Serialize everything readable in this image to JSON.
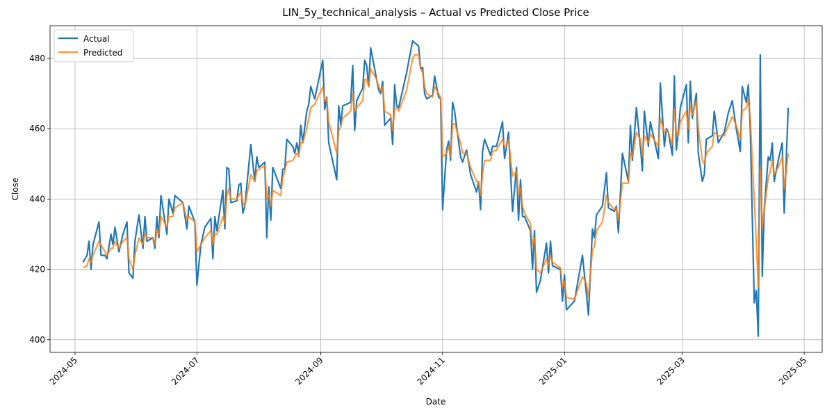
{
  "chart_data": {
    "type": "line",
    "title": "LIN_5y_technical_analysis – Actual vs Predicted Close Price",
    "x_label": "Date",
    "y_label": "Close",
    "x": [
      19848,
      19850,
      19851,
      19852,
      19853,
      19856,
      19857,
      19859,
      19860,
      19862,
      19863,
      19864,
      19866,
      19868,
      19870,
      19871,
      19873,
      19874,
      19876,
      19878,
      19879,
      19880,
      19883,
      19884,
      19885,
      19886,
      19887,
      19890,
      19891,
      19893,
      19894,
      19898,
      19900,
      19901,
      19904,
      19905,
      19907,
      19909,
      19912,
      19913,
      19914,
      19915,
      19918,
      19919,
      19920,
      19921,
      19922,
      19925,
      19926,
      19927,
      19928,
      19929,
      19932,
      19934,
      19935,
      19936,
      19939,
      19940,
      19941,
      19942,
      19943,
      19947,
      19948,
      19949,
      19950,
      19953,
      19954,
      19955,
      19956,
      19957,
      19958,
      19960,
      19961,
      19962,
      19964,
      19968,
      19969,
      19970,
      19971,
      19975,
      19976,
      19977,
      19978,
      19982,
      19983,
      19984,
      19985,
      19988,
      19989,
      19990,
      19991,
      19992,
      19995,
      19996,
      19997,
      19998,
      19999,
      20002,
      20003,
      20004,
      20005,
      20006,
      20010,
      20013,
      20014,
      20016,
      20017,
      20018,
      20019,
      20020,
      20023,
      20024,
      20026,
      20027,
      20028,
      20030,
      20031,
      20032,
      20033,
      20034,
      20037,
      20038,
      20040,
      20042,
      20045,
      20046,
      20047,
      20048,
      20049,
      20052,
      20053,
      20055,
      20058,
      20059,
      20060,
      20061,
      20063,
      20065,
      20066,
      20067,
      20068,
      20069,
      20072,
      20073,
      20074,
      20075,
      20077,
      20080,
      20081,
      20082,
      20083,
      20087,
      20088,
      20089,
      20090,
      20094,
      20098,
      20100,
      20101,
      20103,
      20104,
      20105,
      20108,
      20110,
      20111,
      20114,
      20115,
      20116,
      20118,
      20121,
      20122,
      20123,
      20125,
      20127,
      20128,
      20129,
      20131,
      20132,
      20136,
      20137,
      20139,
      20140,
      20141,
      20143,
      20144,
      20145,
      20146,
      20147,
      20150,
      20151,
      20152,
      20153,
      20155,
      20156,
      20158,
      20159,
      20160,
      20163,
      20164,
      20166,
      20169,
      20171,
      20173,
      20175,
      20177,
      20178,
      20180,
      20181,
      20182,
      20184,
      20185,
      20186,
      20187,
      20188,
      20189,
      20191,
      20192,
      20193,
      20194,
      20196,
      20198,
      20199,
      20201
    ],
    "series": [
      {
        "name": "Actual",
        "color": "#1f77b4",
        "values": [
          422,
          424,
          428,
          420,
          427,
          433.5,
          424,
          424,
          423,
          430,
          427,
          432,
          425,
          430,
          433.5,
          419,
          417.5,
          428,
          435.5,
          426,
          435,
          428,
          429,
          426,
          435,
          429,
          441,
          430,
          440,
          436,
          441,
          439,
          431.5,
          438,
          433.5,
          415.5,
          427,
          432,
          434.5,
          423,
          435,
          431,
          442.5,
          431.5,
          449,
          448.5,
          439,
          439.5,
          444,
          444.5,
          436,
          438,
          455.5,
          445,
          452,
          449,
          450.5,
          429,
          443.5,
          434,
          449,
          443,
          448.5,
          448.5,
          457,
          455,
          453,
          456,
          453,
          461,
          456,
          465,
          467,
          472,
          468.5,
          479.5,
          465.5,
          469,
          456,
          445.5,
          466.5,
          461,
          466.5,
          467.5,
          478,
          459.5,
          468,
          471.5,
          479.5,
          478,
          472,
          483,
          474,
          471,
          470,
          473.5,
          461,
          463,
          455.5,
          472.5,
          466.5,
          466,
          476,
          485,
          484.5,
          483.5,
          477,
          477.5,
          470,
          468.5,
          469.5,
          475,
          469,
          468.5,
          437,
          454,
          456.5,
          451,
          467.5,
          465,
          452,
          450.5,
          454,
          447,
          442,
          445,
          437,
          453.5,
          457,
          452.5,
          455,
          455,
          462,
          451.5,
          455,
          459,
          436.5,
          449,
          434,
          445.5,
          435,
          435,
          431,
          420,
          431,
          413.5,
          417,
          427.5,
          419,
          428,
          421,
          420,
          411,
          418.5,
          408.5,
          411,
          424,
          413,
          407,
          431.5,
          429,
          435.5,
          438,
          447.5,
          437.5,
          436.5,
          438,
          430.5,
          453,
          445,
          461,
          451,
          466,
          455,
          448,
          465,
          455,
          462,
          451.5,
          473,
          455,
          460,
          459,
          452.5,
          475,
          454,
          459,
          466,
          472.5,
          456,
          473.5,
          463,
          470,
          453,
          445,
          447,
          457,
          458,
          465,
          456,
          459,
          464.5,
          468,
          460,
          453.5,
          472,
          467.5,
          472.5,
          460,
          410.5,
          414,
          401,
          481,
          418,
          437,
          452,
          451,
          456,
          445,
          451,
          456,
          436,
          466
        ]
      },
      {
        "name": "Predicted",
        "color": "#ff7f0e",
        "values": [
          420.5,
          421,
          423,
          422,
          424,
          428,
          427,
          425,
          424,
          426,
          426,
          428,
          426,
          428,
          429,
          423,
          420,
          424,
          429,
          427,
          430,
          429,
          429,
          427,
          431,
          430,
          435,
          432,
          435,
          435,
          437.5,
          439,
          434,
          435,
          433.5,
          425,
          427,
          429,
          431,
          427,
          430,
          430,
          435,
          433,
          441,
          443,
          440,
          440,
          441,
          442,
          439,
          438,
          447,
          445,
          448,
          448.5,
          449.5,
          440,
          441,
          438,
          442.5,
          441,
          446,
          448,
          450.5,
          451,
          452,
          453,
          452,
          456,
          456,
          460,
          463,
          466,
          467,
          472,
          468,
          468.5,
          462,
          453,
          459.5,
          460.5,
          463,
          465,
          470,
          465,
          466,
          468,
          474,
          474,
          472,
          477,
          474,
          472,
          471,
          472,
          465,
          464,
          459.5,
          465.5,
          466,
          465,
          471,
          480,
          481,
          481,
          477,
          476,
          472,
          470,
          469,
          472,
          470,
          469,
          452,
          453,
          455,
          452,
          461,
          461.5,
          456,
          453,
          453,
          449,
          445,
          445,
          441,
          447,
          451,
          451,
          453.5,
          454,
          457,
          455,
          455,
          457,
          446.5,
          448,
          441,
          443,
          438,
          436,
          433,
          427,
          429,
          420,
          419,
          423,
          421,
          424,
          422,
          420.5,
          415,
          416.5,
          412,
          411.5,
          418,
          416,
          412,
          425.5,
          426.5,
          431,
          433.5,
          441,
          439,
          437,
          437.5,
          434,
          444.5,
          444.5,
          453,
          452,
          459,
          457,
          452,
          458,
          456,
          458.5,
          455,
          463,
          459,
          459.5,
          459,
          455.5,
          465.5,
          459,
          458,
          462,
          465,
          460,
          466.5,
          464,
          468,
          460,
          451,
          450,
          453,
          455,
          459,
          458,
          458,
          461,
          463.5,
          461,
          457,
          465,
          466,
          468.5,
          463,
          440,
          428,
          415,
          449,
          432,
          437,
          446,
          448,
          451,
          447,
          449,
          452,
          443,
          453
        ]
      }
    ],
    "xlim": [
      19831.5,
      20218
    ],
    "xticks": [
      {
        "value": 19844,
        "label": "2024-05"
      },
      {
        "value": 19905,
        "label": "2024-07"
      },
      {
        "value": 19967,
        "label": "2024-09"
      },
      {
        "value": 20028,
        "label": "2024-11"
      },
      {
        "value": 20089,
        "label": "2025-01"
      },
      {
        "value": 20148,
        "label": "2025-03"
      },
      {
        "value": 20209,
        "label": "2025-05"
      }
    ],
    "ylim": [
      396.4,
      489.3
    ],
    "yticks": [
      400,
      420,
      440,
      460,
      480
    ],
    "grid": true,
    "legend": "upper left"
  }
}
